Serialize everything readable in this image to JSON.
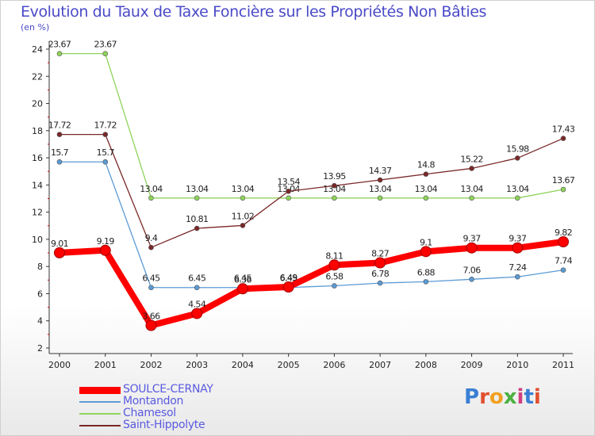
{
  "title": "Evolution du Taux de Taxe Foncière sur les Propriétés Non Bâties",
  "unit_label": "(en %)",
  "logo": {
    "text": "Proxiti",
    "colors": [
      "#3a7fd5",
      "#e05030",
      "#f0a020",
      "#4ab040",
      "#d04080",
      "#3a7fd5",
      "#e05030"
    ]
  },
  "chart_data": {
    "type": "line",
    "title": "Evolution du Taux de Taxe Foncière sur les Propriétés Non Bâties",
    "ylabel": "(en %)",
    "xlabel": "",
    "ylim": [
      2,
      24
    ],
    "yticks": [
      2,
      4,
      6,
      8,
      10,
      12,
      14,
      16,
      18,
      20,
      22,
      24
    ],
    "grid": false,
    "legend_position": "bottom-left",
    "x": [
      "2000",
      "2001",
      "2002",
      "2003",
      "2004",
      "2005",
      "2006",
      "2007",
      "2008",
      "2009",
      "2010",
      "2011"
    ],
    "series": [
      {
        "name": "Chamesol",
        "color": "#8ed35a",
        "labels": [
          "23.67",
          "23.67",
          "13.04",
          "13.04",
          "13.04",
          "13.04",
          "13.04",
          "13.04",
          "13.04",
          "13.04",
          "13.04",
          "13.67"
        ],
        "values": [
          23.67,
          23.67,
          13.04,
          13.04,
          13.04,
          13.04,
          13.04,
          13.04,
          13.04,
          13.04,
          13.04,
          13.67
        ]
      },
      {
        "name": "Saint-Hippolyte",
        "color": "#7a2828",
        "labels": [
          "17.72",
          "17.72",
          "9.4",
          "10.81",
          "11.02",
          "13.54",
          "13.95",
          "14.37",
          "14.8",
          "15.22",
          "15.98",
          "17.43"
        ],
        "values": [
          17.72,
          17.72,
          9.4,
          10.81,
          11.02,
          13.54,
          13.95,
          14.37,
          14.8,
          15.22,
          15.98,
          17.43
        ]
      },
      {
        "name": "Montandon",
        "color": "#5b9bd5",
        "labels": [
          "15.7",
          "15.7",
          "6.45",
          "6.45",
          "6.45",
          "6.45",
          "6.58",
          "6.78",
          "6.88",
          "7.06",
          "7.24",
          "7.74"
        ],
        "values": [
          15.7,
          15.7,
          6.45,
          6.45,
          6.45,
          6.45,
          6.58,
          6.78,
          6.88,
          7.06,
          7.24,
          7.74
        ]
      },
      {
        "name": "SOULCE-CERNAY",
        "color": "#ff0000",
        "labels": [
          "9.01",
          "9.19",
          "3.66",
          "4.54",
          "6.36",
          "6.49",
          "8.11",
          "8.27",
          "9.1",
          "9.37",
          "9.37",
          "9.82"
        ],
        "values": [
          9.01,
          9.19,
          3.66,
          4.54,
          6.36,
          6.49,
          8.11,
          8.27,
          9.1,
          9.37,
          9.37,
          9.82
        ]
      }
    ],
    "legend_order": [
      "SOULCE-CERNAY",
      "Montandon",
      "Chamesol",
      "Saint-Hippolyte"
    ]
  }
}
